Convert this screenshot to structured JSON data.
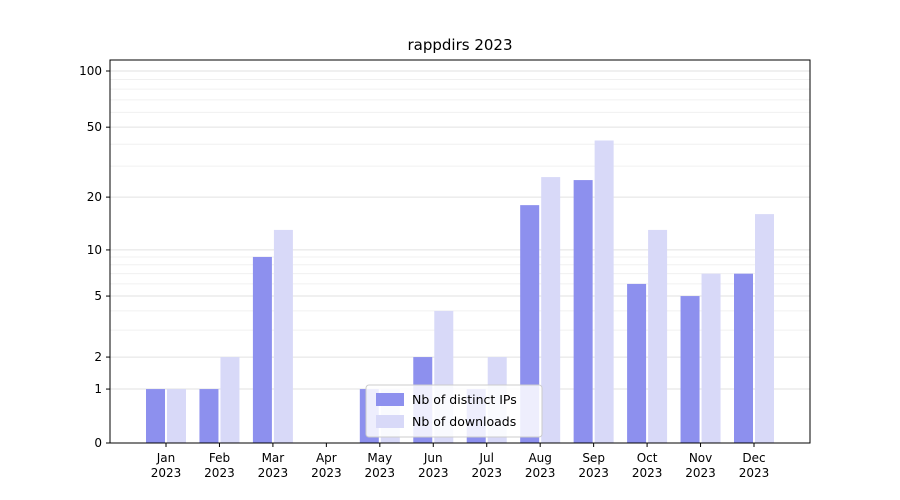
{
  "chart_data": {
    "type": "bar",
    "title": "rappdirs 2023",
    "categories": [
      "Jan 2023",
      "Feb 2023",
      "Mar 2023",
      "Apr 2023",
      "May 2023",
      "Jun 2023",
      "Jul 2023",
      "Aug 2023",
      "Sep 2023",
      "Oct 2023",
      "Nov 2023",
      "Dec 2023"
    ],
    "series": [
      {
        "name": "Nb of distinct IPs",
        "key": "distinct-ips",
        "color": "#8d90ee",
        "values": [
          1,
          1,
          9,
          0,
          1,
          2,
          1,
          18,
          25,
          6,
          5,
          7
        ]
      },
      {
        "name": "Nb of downloads",
        "key": "downloads",
        "color": "#d8d9f8",
        "values": [
          1,
          2,
          13,
          0,
          1,
          4,
          2,
          26,
          42,
          13,
          7,
          16
        ]
      }
    ],
    "yscale": "log-with-zero",
    "yticks": [
      0,
      1,
      2,
      5,
      10,
      20,
      50,
      100
    ],
    "minor_yticks": [
      3,
      4,
      6,
      7,
      8,
      9,
      30,
      40,
      60,
      70,
      80,
      90
    ],
    "ylim": [
      0,
      100
    ],
    "grid": true,
    "legend": {
      "position": "lower-center"
    },
    "colors": {
      "major_grid": "#e2e2e2",
      "minor_grid": "#f0f0f0",
      "axis": "#000000",
      "legend_border": "#cccccc"
    }
  }
}
